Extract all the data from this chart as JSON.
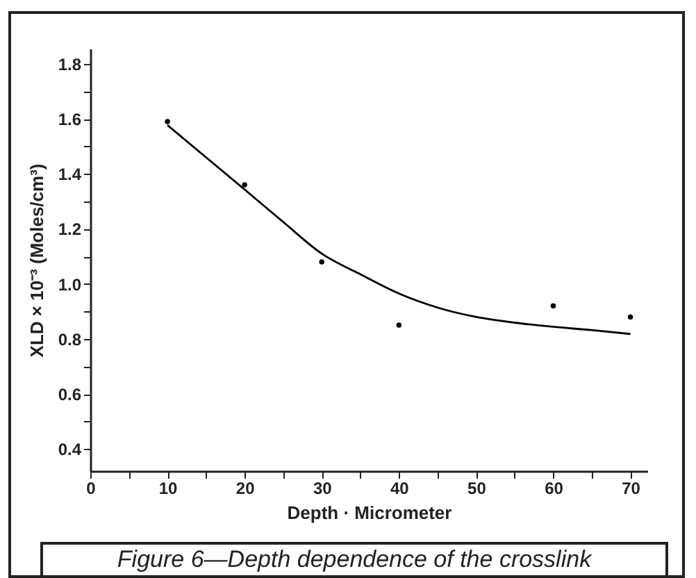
{
  "chart_data": {
    "type": "scatter",
    "xlabel": "Depth · Micrometer",
    "ylabel": "XLD × 10⁻³ (Moles/cm³)",
    "xlim": [
      0,
      72.2
    ],
    "ylim": [
      0.32,
      1.855
    ],
    "xticks": [
      0,
      {
        "value": 5,
        "label": null
      },
      10,
      {
        "value": 15,
        "label": null
      },
      20,
      {
        "value": 25,
        "label": null
      },
      30,
      {
        "value": 35,
        "label": null
      },
      40,
      {
        "value": 45,
        "label": null
      },
      50,
      {
        "value": 55,
        "label": null
      },
      60,
      {
        "value": 65,
        "label": null
      },
      70
    ],
    "yticks": [
      {
        "value": 0.4,
        "label": "0.4"
      },
      {
        "value": 0.5,
        "label": null
      },
      {
        "value": 0.6,
        "label": "0.6"
      },
      {
        "value": 0.7,
        "label": null
      },
      {
        "value": 0.8,
        "label": "0.8"
      },
      {
        "value": 0.9,
        "label": null
      },
      {
        "value": 1.0,
        "label": "1.0"
      },
      {
        "value": 1.1,
        "label": null
      },
      {
        "value": 1.2,
        "label": "1.2"
      },
      {
        "value": 1.3,
        "label": null
      },
      {
        "value": 1.4,
        "label": "1.4"
      },
      {
        "value": 1.5,
        "label": null
      },
      {
        "value": 1.6,
        "label": "1.6"
      },
      {
        "value": 1.7,
        "label": null
      },
      {
        "value": 1.8,
        "label": "1.8"
      }
    ],
    "grid": false,
    "series": [
      {
        "type": "scatter",
        "marker": "circle",
        "color": "#000000",
        "x": [
          10,
          20,
          30,
          40,
          60,
          70
        ],
        "values": [
          1.59,
          1.36,
          1.08,
          0.85,
          0.92,
          0.88
        ]
      },
      {
        "type": "line",
        "color": "#000000",
        "x": [
          10,
          15,
          20,
          25,
          30,
          35,
          40,
          45,
          50,
          55,
          60,
          65,
          70
        ],
        "values": [
          1.577,
          1.46,
          1.343,
          1.225,
          1.11,
          1.035,
          0.965,
          0.914,
          0.88,
          0.859,
          0.844,
          0.832,
          0.818
        ]
      }
    ],
    "annotations": [
      "Figure 6—Depth dependence of the crosslink"
    ]
  }
}
